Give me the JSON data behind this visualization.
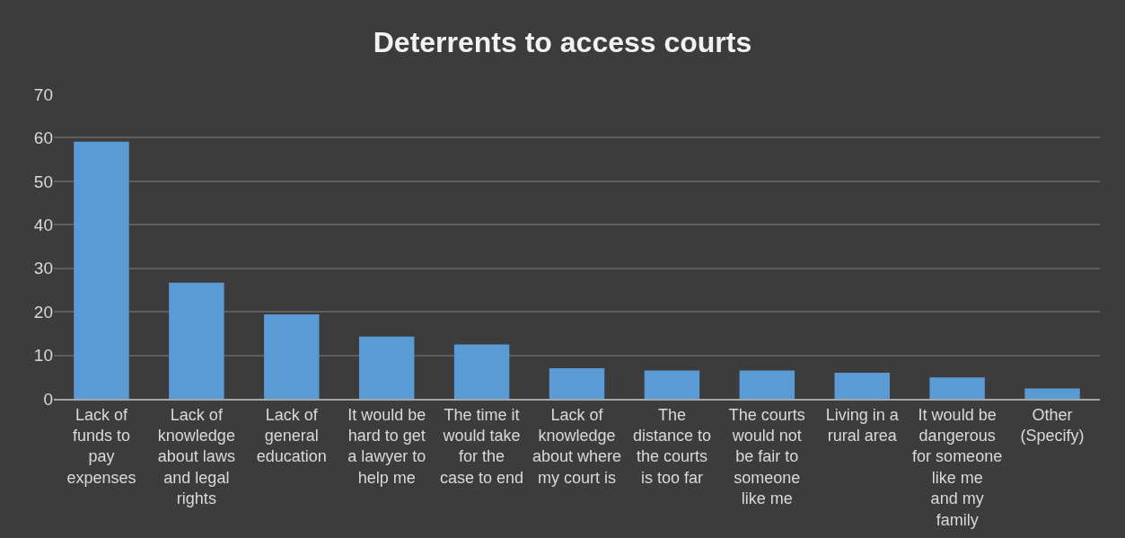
{
  "chart_data": {
    "type": "bar",
    "title": "Deterrents to access courts",
    "categories": [
      "Lack of funds to pay expenses",
      "Lack of knowledge about laws and legal rights",
      "Lack of general education",
      "It would be hard to get a lawyer to help me",
      "The time it would take for the case to end",
      "Lack of knowledge about where my court is",
      "The distance to the courts is too far",
      "The courts would not be fair to someone like me",
      "Living in a rural area",
      "It would be dangerous for someone like me  and my family",
      "Other (Specify)"
    ],
    "values": [
      59.1,
      26.7,
      19.4,
      14.3,
      12.5,
      7.0,
      6.5,
      6.5,
      6.0,
      4.9,
      2.4
    ],
    "color": "#5b9bd5",
    "ylim": [
      0,
      70
    ],
    "yticks": [
      0,
      10,
      20,
      30,
      40,
      50,
      60,
      70
    ],
    "grid": "y"
  }
}
